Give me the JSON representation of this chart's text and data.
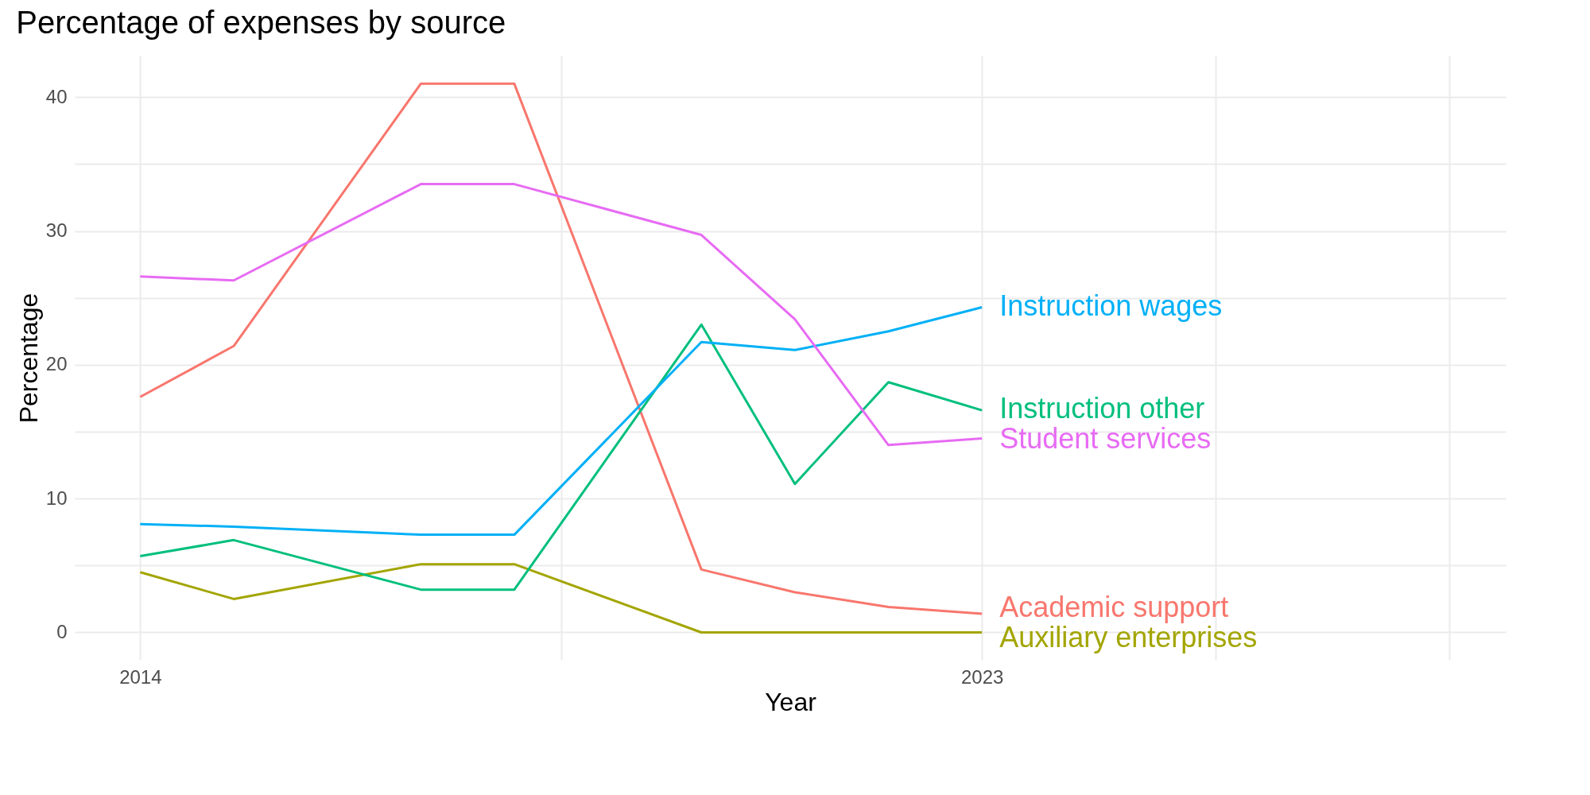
{
  "chart_data": {
    "type": "line",
    "title": "Percentage of expenses by source",
    "xlabel": "Year",
    "ylabel": "Percentage",
    "x": [
      2014,
      2015,
      2017,
      2018,
      2020,
      2021,
      2022,
      2023
    ],
    "xlim": [
      2013.3,
      2028.6
    ],
    "xticks": [
      2014,
      {
        "value": 2018.5,
        "label": null
      },
      2023,
      {
        "value": 2025.5,
        "label": null
      },
      {
        "value": 2028,
        "label": null
      }
    ],
    "ylim": [
      -2.05,
      43.1
    ],
    "yticks": [
      0,
      {
        "value": 5,
        "label": null
      },
      10,
      {
        "value": 15,
        "label": null
      },
      20,
      {
        "value": 25,
        "label": null
      },
      30,
      {
        "value": 35,
        "label": null
      },
      40
    ],
    "grid": true,
    "legend": false,
    "line_style": "solid",
    "series": [
      {
        "name": "Academic support",
        "color": "#f8766d",
        "values": [
          17.6,
          21.4,
          41.0,
          41.0,
          4.7,
          3.0,
          1.9,
          1.4
        ]
      },
      {
        "name": "Auxiliary enterprises",
        "color": "#a3a500",
        "values": [
          4.5,
          2.5,
          5.1,
          5.1,
          0,
          0,
          0,
          0
        ]
      },
      {
        "name": "Instruction other",
        "color": "#00bf7d",
        "values": [
          5.7,
          6.9,
          3.2,
          3.2,
          23.0,
          11.1,
          18.7,
          16.6
        ]
      },
      {
        "name": "Instruction wages",
        "color": "#00b0f6",
        "values": [
          8.1,
          7.9,
          7.3,
          7.3,
          21.7,
          21.1,
          22.5,
          24.3
        ]
      },
      {
        "name": "Student services",
        "color": "#e76bf3",
        "values": [
          26.6,
          26.3,
          33.5,
          33.5,
          29.7,
          23.4,
          14.0,
          14.5
        ]
      }
    ]
  }
}
